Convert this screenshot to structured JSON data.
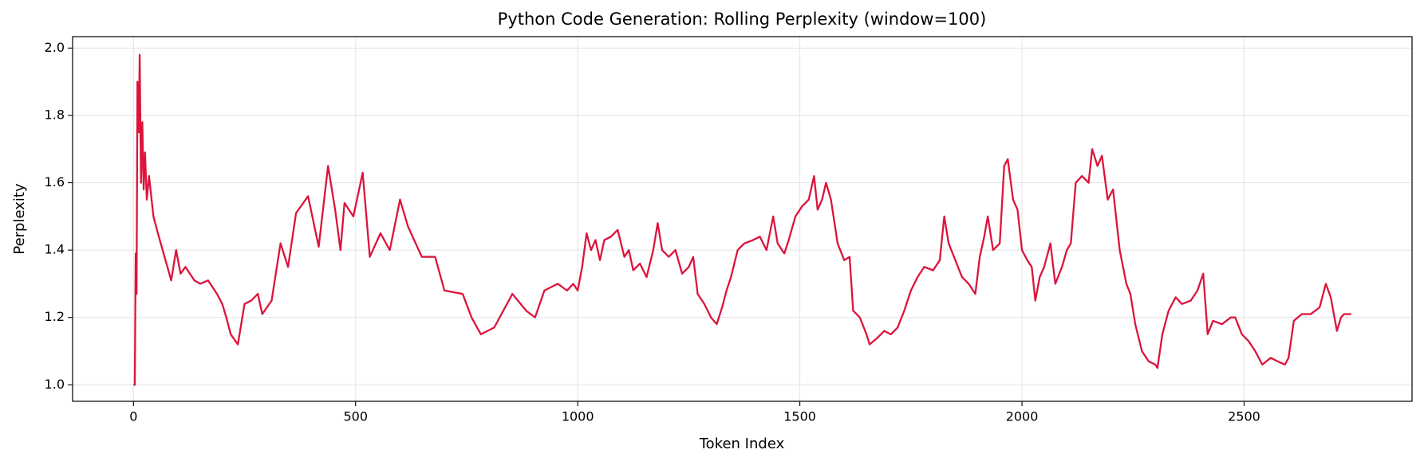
{
  "chart_data": {
    "type": "line",
    "title": "Python Code Generation: Rolling Perplexity (window=100)",
    "xlabel": "Token Index",
    "ylabel": "Perplexity",
    "x": [
      0,
      3,
      5,
      7,
      9,
      12,
      14,
      17,
      20,
      23,
      26,
      30,
      35,
      45,
      55,
      70,
      85,
      96,
      106,
      117,
      137,
      150,
      168,
      188,
      200,
      209,
      219,
      235,
      250,
      265,
      280,
      290,
      311,
      331,
      348,
      366,
      393,
      417,
      438,
      454,
      466,
      475,
      495,
      516,
      532,
      556,
      577,
      600,
      618,
      649,
      679,
      700,
      741,
      761,
      782,
      812,
      853,
      884,
      904,
      925,
      955,
      976,
      990,
      1000,
      1010,
      1020,
      1030,
      1040,
      1050,
      1060,
      1075,
      1090,
      1105,
      1115,
      1125,
      1140,
      1155,
      1170,
      1180,
      1190,
      1205,
      1220,
      1235,
      1250,
      1260,
      1270,
      1285,
      1300,
      1313,
      1325,
      1335,
      1345,
      1360,
      1375,
      1395,
      1410,
      1425,
      1440,
      1450,
      1465,
      1475,
      1490,
      1505,
      1520,
      1532,
      1540,
      1550,
      1559,
      1570,
      1585,
      1600,
      1612,
      1620,
      1635,
      1650,
      1657,
      1675,
      1690,
      1705,
      1720,
      1735,
      1750,
      1765,
      1780,
      1800,
      1815,
      1825,
      1835,
      1850,
      1865,
      1880,
      1895,
      1905,
      1915,
      1923,
      1935,
      1950,
      1960,
      1968,
      1980,
      1990,
      2000,
      2012,
      2022,
      2030,
      2040,
      2050,
      2064,
      2075,
      2090,
      2101,
      2110,
      2121,
      2135,
      2150,
      2158,
      2170,
      2180,
      2193,
      2205,
      2220,
      2235,
      2244,
      2255,
      2270,
      2285,
      2300,
      2305,
      2316,
      2330,
      2346,
      2360,
      2380,
      2395,
      2408,
      2418,
      2430,
      2450,
      2470,
      2480,
      2495,
      2510,
      2525,
      2541,
      2560,
      2575,
      2592,
      2600,
      2612,
      2630,
      2650,
      2670,
      2684,
      2695,
      2709,
      2718,
      2725,
      2741
    ],
    "series": [
      {
        "name": "Rolling Perplexity",
        "color": "#dc143c",
        "values": [
          1.0,
          1.0,
          1.39,
          1.27,
          1.9,
          1.75,
          1.98,
          1.6,
          1.78,
          1.58,
          1.69,
          1.55,
          1.62,
          1.5,
          1.45,
          1.38,
          1.31,
          1.4,
          1.33,
          1.35,
          1.31,
          1.3,
          1.31,
          1.27,
          1.24,
          1.2,
          1.15,
          1.12,
          1.24,
          1.25,
          1.27,
          1.21,
          1.25,
          1.42,
          1.35,
          1.51,
          1.56,
          1.41,
          1.65,
          1.52,
          1.4,
          1.54,
          1.5,
          1.63,
          1.38,
          1.45,
          1.4,
          1.55,
          1.47,
          1.38,
          1.38,
          1.28,
          1.27,
          1.2,
          1.15,
          1.17,
          1.27,
          1.22,
          1.2,
          1.28,
          1.3,
          1.28,
          1.3,
          1.28,
          1.35,
          1.45,
          1.4,
          1.43,
          1.37,
          1.43,
          1.44,
          1.46,
          1.38,
          1.4,
          1.34,
          1.36,
          1.32,
          1.4,
          1.48,
          1.4,
          1.38,
          1.4,
          1.33,
          1.35,
          1.38,
          1.27,
          1.24,
          1.2,
          1.18,
          1.23,
          1.28,
          1.32,
          1.4,
          1.42,
          1.43,
          1.44,
          1.4,
          1.5,
          1.42,
          1.39,
          1.43,
          1.5,
          1.53,
          1.55,
          1.62,
          1.52,
          1.55,
          1.6,
          1.55,
          1.42,
          1.37,
          1.38,
          1.22,
          1.2,
          1.15,
          1.12,
          1.14,
          1.16,
          1.15,
          1.17,
          1.22,
          1.28,
          1.32,
          1.35,
          1.34,
          1.37,
          1.5,
          1.42,
          1.37,
          1.32,
          1.3,
          1.27,
          1.38,
          1.44,
          1.5,
          1.4,
          1.42,
          1.65,
          1.67,
          1.55,
          1.52,
          1.4,
          1.37,
          1.35,
          1.25,
          1.32,
          1.35,
          1.42,
          1.3,
          1.35,
          1.4,
          1.42,
          1.6,
          1.62,
          1.6,
          1.7,
          1.65,
          1.68,
          1.55,
          1.58,
          1.4,
          1.3,
          1.27,
          1.18,
          1.1,
          1.07,
          1.06,
          1.05,
          1.15,
          1.22,
          1.26,
          1.24,
          1.25,
          1.28,
          1.33,
          1.15,
          1.19,
          1.18,
          1.2,
          1.2,
          1.15,
          1.13,
          1.1,
          1.06,
          1.08,
          1.07,
          1.06,
          1.08,
          1.19,
          1.21,
          1.21,
          1.23,
          1.3,
          1.26,
          1.16,
          1.2,
          1.21,
          1.21
        ]
      }
    ],
    "xlim": [
      -137,
      2878
    ],
    "ylim": [
      0.951,
      2.034
    ],
    "xticks": [
      0,
      500,
      1000,
      1500,
      2000,
      2500
    ],
    "yticks": [
      {
        "value": 1.0,
        "label": "1.0"
      },
      1.2,
      1.4,
      1.6,
      1.8,
      {
        "value": 2.0,
        "label": "2.0"
      }
    ],
    "grid": true
  }
}
